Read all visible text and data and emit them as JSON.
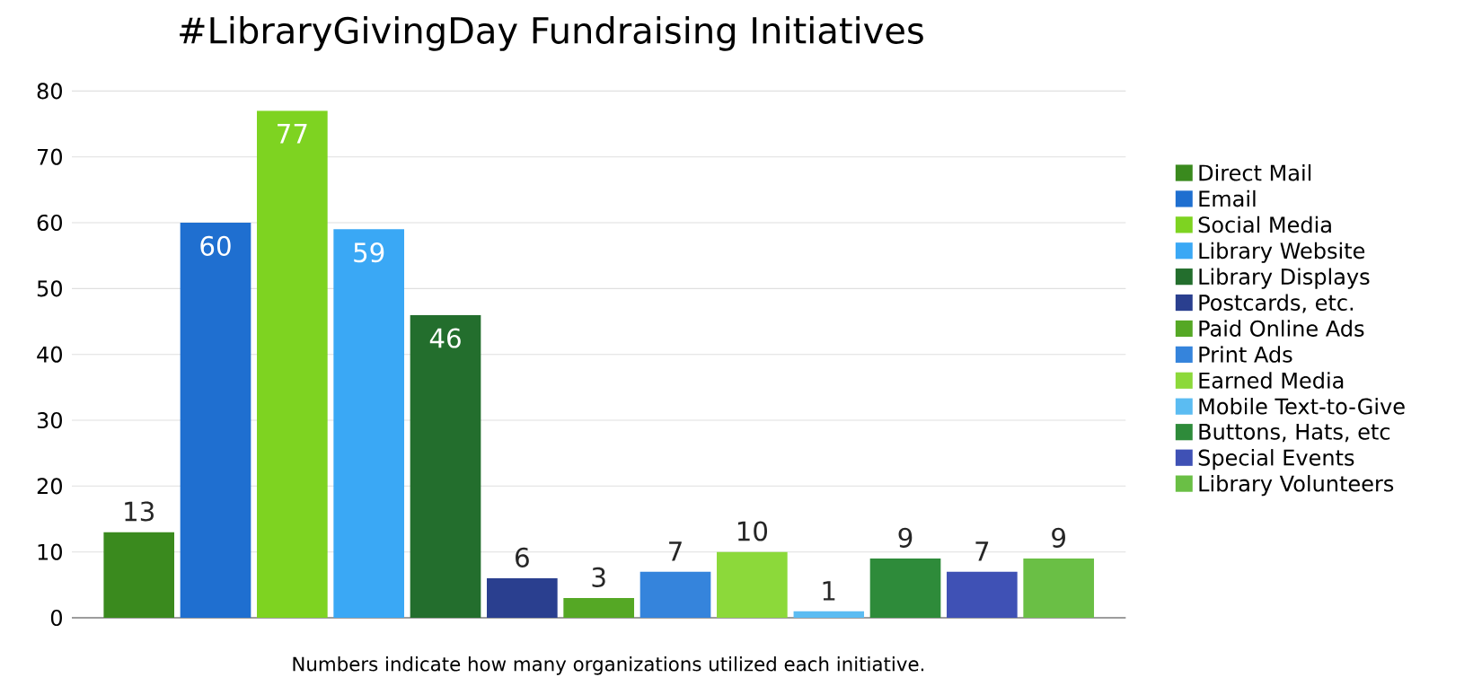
{
  "chart_data": {
    "type": "bar",
    "title": "#LibraryGivingDay Fundraising Initiatives",
    "categories": [
      null
    ],
    "series": [
      {
        "name": "Direct Mail",
        "color": "#3a8a1e",
        "values": [
          13
        ]
      },
      {
        "name": "Email",
        "color": "#1f6fd0",
        "values": [
          60
        ]
      },
      {
        "name": "Social Media",
        "color": "#7ed321",
        "values": [
          77
        ]
      },
      {
        "name": "Library Website",
        "color": "#3aa8f5",
        "values": [
          59
        ]
      },
      {
        "name": "Library Displays",
        "color": "#236e2d",
        "values": [
          46
        ]
      },
      {
        "name": "Postcards, etc.",
        "color": "#2a3f8f",
        "values": [
          6
        ]
      },
      {
        "name": "Paid Online Ads",
        "color": "#55a825",
        "values": [
          3
        ]
      },
      {
        "name": "Print Ads",
        "color": "#3584dc",
        "values": [
          7
        ]
      },
      {
        "name": "Earned Media",
        "color": "#8cd93a",
        "values": [
          10
        ]
      },
      {
        "name": "Mobile Text-to-Give",
        "color": "#5bbcf2",
        "values": [
          1
        ]
      },
      {
        "name": "Buttons, Hats, etc",
        "color": "#2e8b3a",
        "values": [
          9
        ]
      },
      {
        "name": "Special Events",
        "color": "#3f51b5",
        "values": [
          7
        ]
      },
      {
        "name": "Library Volunteers",
        "color": "#6abf45",
        "values": [
          9
        ]
      }
    ],
    "ylim": [
      0,
      80
    ],
    "yticks": [
      0,
      10,
      20,
      30,
      40,
      50,
      60,
      70,
      80
    ],
    "grid": "y",
    "legend": "right",
    "data_labels": true,
    "annotations": [
      "Numbers indicate how many organizations utilized each initiative."
    ]
  }
}
